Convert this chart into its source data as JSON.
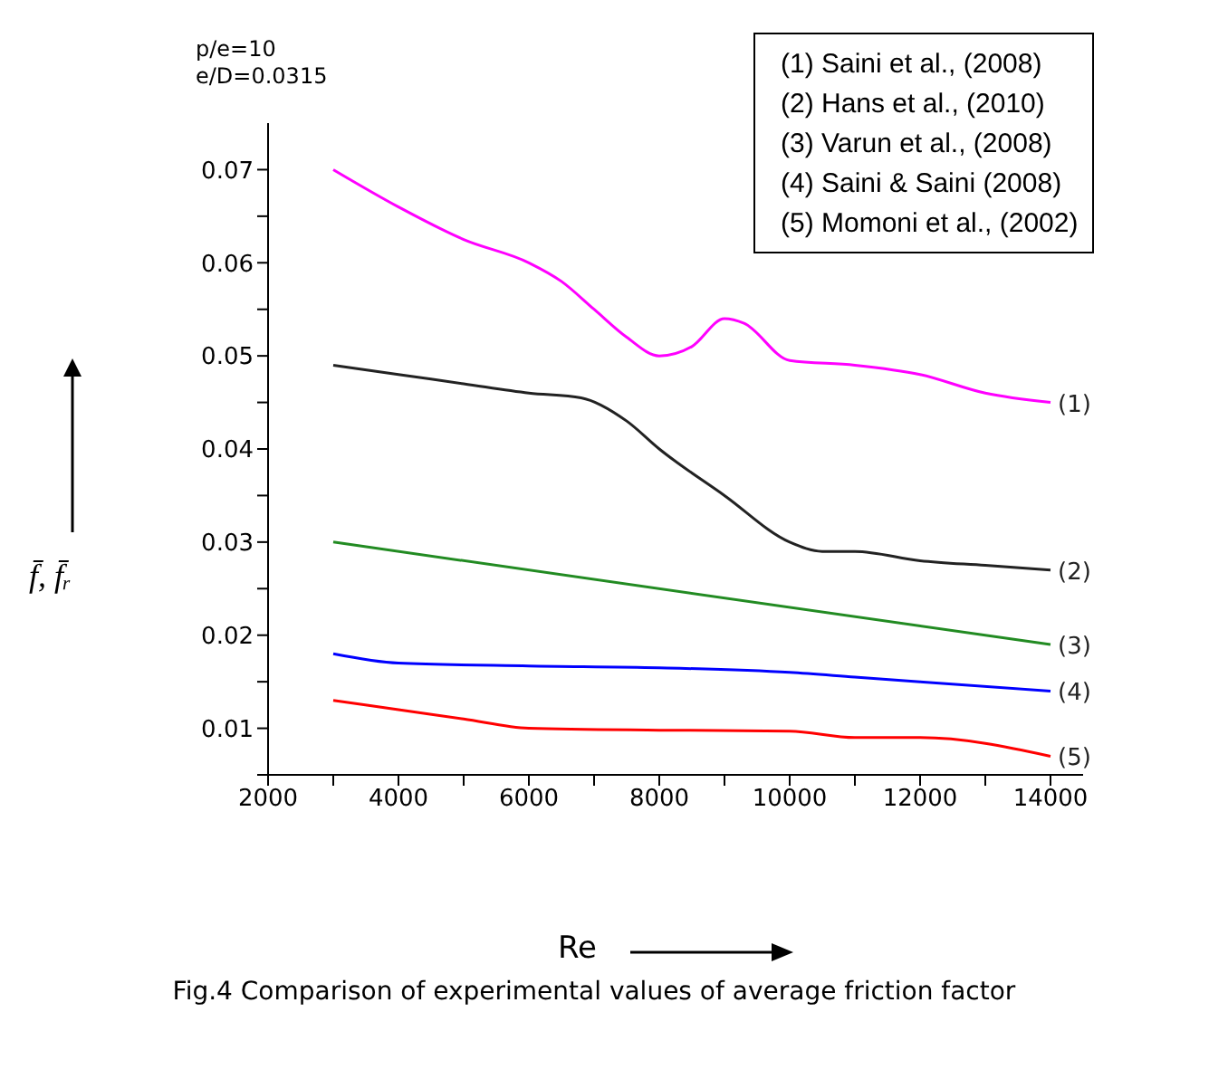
{
  "chart_data": {
    "type": "line",
    "title": "Fig.4 Comparison of experimental values of average friction factor",
    "xlabel": "Re",
    "ylabel": "f̄, f̄ᵣ",
    "annotations": [
      "p/e=10",
      "e/D=0.0315",
      "(1) Saini et al., (2008)",
      "(2) Hans et al., (2010)",
      "(3) Varun et al., (2008)",
      "(4) Saini & Saini (2008)",
      "(5) Momoni et al., (2002)"
    ],
    "xlim": [
      2000,
      14500
    ],
    "xticks": [
      2000,
      {
        "value": 3000,
        "label": null
      },
      4000,
      {
        "value": 5000,
        "label": null
      },
      6000,
      {
        "value": 7000,
        "label": null
      },
      8000,
      {
        "value": 9000,
        "label": null
      },
      10000,
      {
        "value": 11000,
        "label": null
      },
      12000,
      {
        "value": 13000,
        "label": null
      },
      14000
    ],
    "ylim": [
      0.005,
      0.075
    ],
    "yticks": [
      {
        "value": 0.005,
        "label": null
      },
      0.01,
      {
        "value": 0.015,
        "label": null
      },
      0.02,
      {
        "value": 0.025,
        "label": null
      },
      0.03,
      {
        "value": 0.035,
        "label": null
      },
      0.04,
      {
        "value": 0.045,
        "label": null
      },
      0.05,
      {
        "value": 0.055,
        "label": null
      },
      0.06,
      {
        "value": 0.065,
        "label": null
      },
      0.07
    ],
    "grid": false,
    "legend": false,
    "marker": "none",
    "line_style": "solid",
    "series": [
      {
        "name": "(1)",
        "color": "#ff00ff",
        "x": [
          3000,
          4000,
          5000,
          6000,
          6500,
          7000,
          7500,
          8000,
          8500,
          9000,
          9300,
          10000,
          11000,
          12000,
          13000,
          14000
        ],
        "values": [
          0.07,
          0.066,
          0.0625,
          0.06,
          0.058,
          0.055,
          0.052,
          0.05,
          0.051,
          0.054,
          0.0535,
          0.0495,
          0.049,
          0.048,
          0.046,
          0.045
        ]
      },
      {
        "name": "(2)",
        "color": "#222222",
        "x": [
          3000,
          4000,
          5000,
          6000,
          6800,
          7500,
          8000,
          9000,
          10000,
          10500,
          11000,
          12000,
          13000,
          14000
        ],
        "values": [
          0.049,
          0.048,
          0.047,
          0.046,
          0.0455,
          0.043,
          0.04,
          0.035,
          0.03,
          0.029,
          0.029,
          0.028,
          0.0275,
          0.027
        ]
      },
      {
        "name": "(3)",
        "color": "#228b22",
        "x": [
          3000,
          14000
        ],
        "values": [
          0.03,
          0.019
        ]
      },
      {
        "name": "(4)",
        "color": "#0000ff",
        "x": [
          3000,
          4000,
          6000,
          8000,
          10000,
          11000,
          12000,
          14000
        ],
        "values": [
          0.018,
          0.017,
          0.0167,
          0.0165,
          0.016,
          0.0155,
          0.015,
          0.014
        ]
      },
      {
        "name": "(5)",
        "color": "#ff0000",
        "x": [
          3000,
          4000,
          5000,
          6000,
          8000,
          10000,
          11000,
          12000,
          14000
        ],
        "values": [
          0.013,
          0.012,
          0.011,
          0.01,
          0.0098,
          0.0097,
          0.009,
          0.009,
          0.007
        ]
      }
    ]
  }
}
